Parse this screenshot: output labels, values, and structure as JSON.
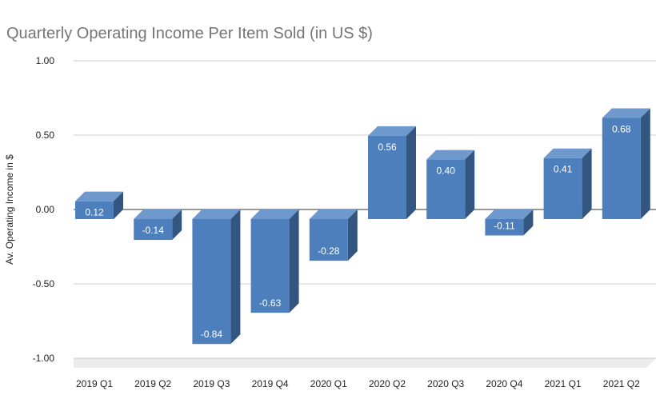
{
  "chart_data": {
    "type": "bar",
    "title": "Quarterly Operating Income Per Item Sold (in US $)",
    "xlabel": "",
    "ylabel": "Av. Operating Income in $",
    "ylim": [
      -1.0,
      1.0
    ],
    "yticks": [
      "1.00",
      "0.50",
      "0.00",
      "-0.50",
      "-1.00"
    ],
    "ytick_values": [
      1.0,
      0.5,
      0.0,
      -0.5,
      -1.0
    ],
    "categories": [
      "2019 Q1",
      "2019 Q2",
      "2019 Q3",
      "2019 Q4",
      "2020 Q1",
      "2020 Q2",
      "2020 Q3",
      "2020 Q4",
      "2021 Q1",
      "2021 Q2"
    ],
    "values": [
      0.12,
      -0.14,
      -0.84,
      -0.63,
      -0.28,
      0.56,
      0.4,
      -0.11,
      0.41,
      0.68
    ],
    "labels": [
      "0.12",
      "-0.14",
      "-0.84",
      "-0.63",
      "-0.28",
      "0.56",
      "0.40",
      "-0.11",
      "0.41",
      "0.68"
    ],
    "grid": true,
    "style": "3d",
    "colors": {
      "front": "#4e7fbd",
      "top": "#6f99cc",
      "side": "#335680",
      "grid": "#cccccc",
      "title": "#757575"
    }
  }
}
